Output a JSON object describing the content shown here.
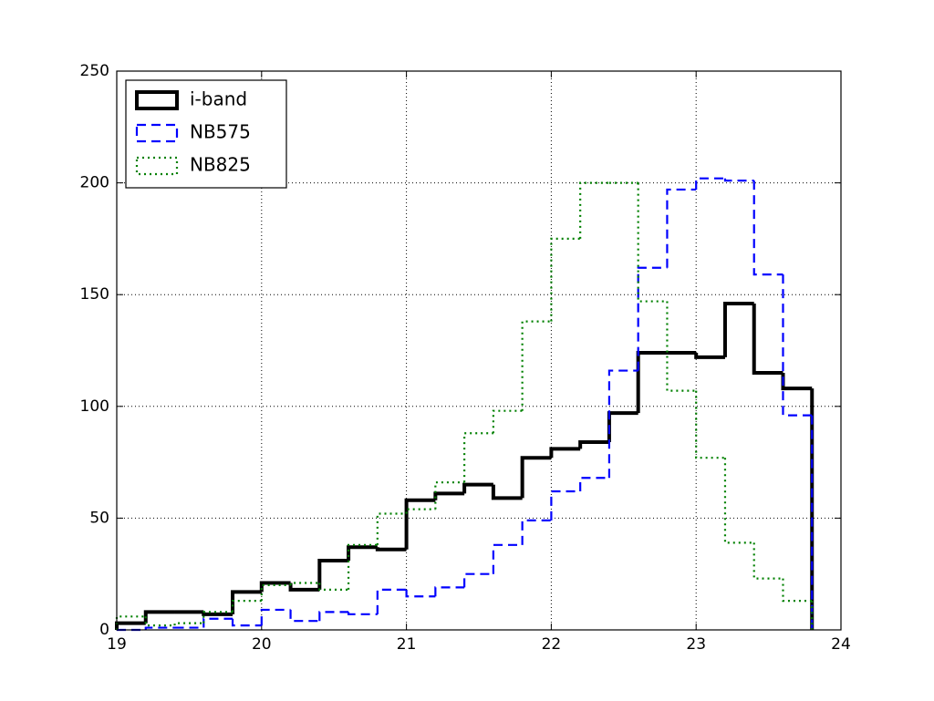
{
  "chart_data": {
    "type": "histogram",
    "bins": [
      19.0,
      19.2,
      19.4,
      19.6,
      19.8,
      20.0,
      20.2,
      20.4,
      20.6,
      20.8,
      21.0,
      21.2,
      21.4,
      21.6,
      21.8,
      22.0,
      22.2,
      22.4,
      22.6,
      22.8,
      23.0,
      23.2,
      23.4,
      23.6,
      23.8
    ],
    "series": [
      {
        "name": "i-band",
        "color": "#000000",
        "linestyle": "solid",
        "values": [
          3,
          8,
          8,
          7,
          17,
          21,
          18,
          31,
          37,
          36,
          58,
          61,
          65,
          59,
          77,
          81,
          84,
          97,
          124,
          124,
          122,
          146,
          115,
          108
        ]
      },
      {
        "name": "NB575",
        "color": "#0000ff",
        "linestyle": "dashed",
        "values": [
          0,
          1,
          1,
          5,
          2,
          9,
          4,
          8,
          7,
          18,
          15,
          19,
          25,
          38,
          49,
          62,
          68,
          116,
          162,
          197,
          202,
          201,
          159,
          96
        ]
      },
      {
        "name": "NB825",
        "color": "#008000",
        "linestyle": "dotted",
        "values": [
          6,
          2,
          3,
          8,
          13,
          20,
          21,
          18,
          38,
          52,
          54,
          66,
          88,
          98,
          138,
          175,
          200,
          200,
          147,
          107,
          77,
          39,
          23,
          13
        ]
      }
    ],
    "xlim": [
      19,
      24
    ],
    "xticks": [
      19,
      20,
      21,
      22,
      23,
      24
    ],
    "ylim": [
      0,
      250
    ],
    "yticks": [
      0,
      50,
      100,
      150,
      200,
      250
    ],
    "grid": true,
    "legend": "upper left"
  }
}
